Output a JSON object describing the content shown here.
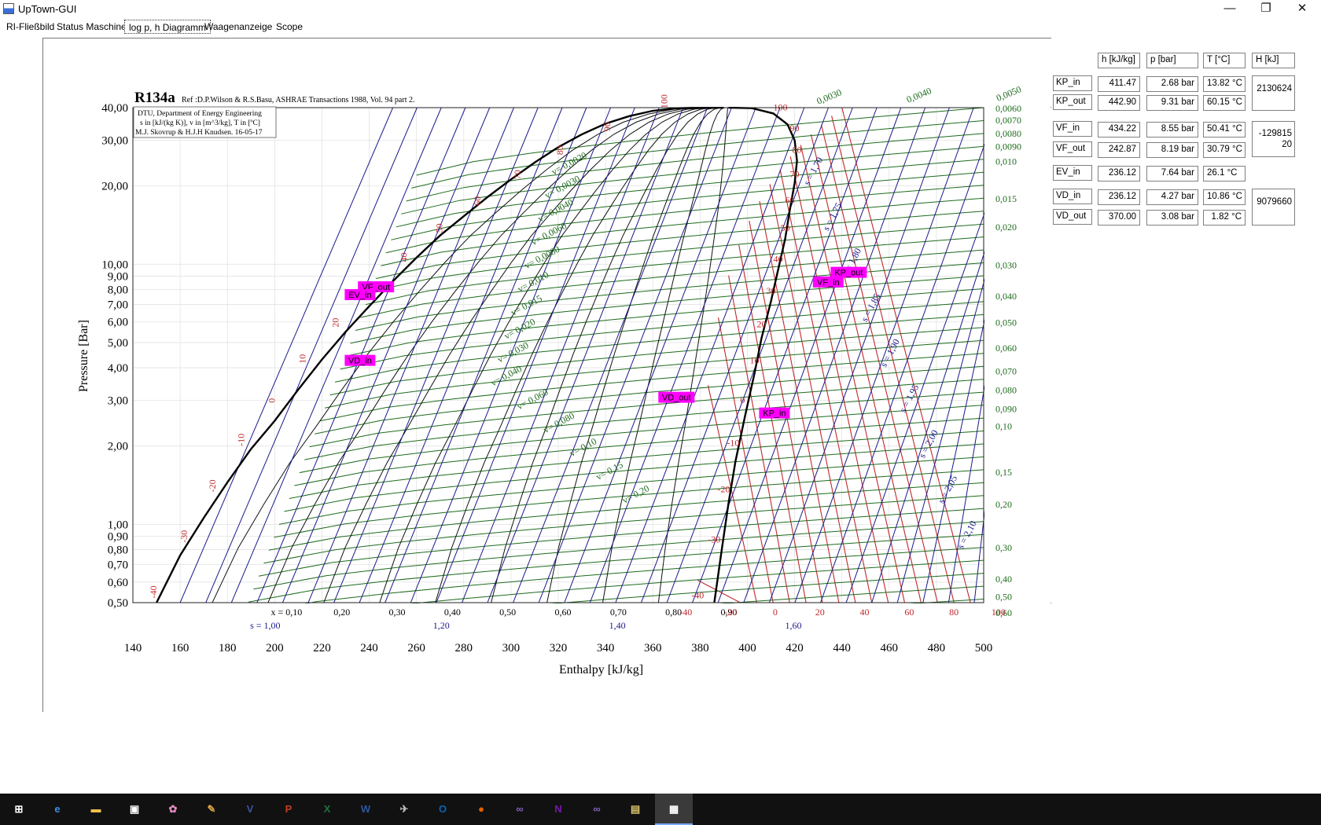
{
  "window": {
    "title": "UpTown-GUI",
    "minimize": "—",
    "restore": "❐",
    "close": "✕"
  },
  "tabs": [
    {
      "label": "RI-Fließbild"
    },
    {
      "label": "Status Maschine"
    },
    {
      "label": "log p, h Diagramm"
    },
    {
      "label": "Waagenanzeige"
    },
    {
      "label": "Scope"
    }
  ],
  "chart_data": {
    "type": "line",
    "title": "R134a",
    "subtitle": "Ref :D.P.Wilson & R.S.Basu, ASHRAE Transactions 1988, Vol. 94 part 2.",
    "infobox": [
      "DTU, Department of Energy Engineering",
      "s in [kJ/(kg K)], v in [m^3/kg], T in [ºC]",
      "M.J. Skovrup & H.J.H Knudsen. 16-05-17"
    ],
    "xlabel": "Enthalpy [kJ/kg]",
    "ylabel": "Pressure [Bar]",
    "xlim": [
      140,
      500
    ],
    "ylim": [
      0.5,
      40
    ],
    "yscale": "log",
    "x_ticks": [
      "140",
      "160",
      "180",
      "200",
      "220",
      "240",
      "260",
      "280",
      "300",
      "320",
      "340",
      "360",
      "380",
      "400",
      "420",
      "440",
      "460",
      "480",
      "500"
    ],
    "y_ticks": [
      {
        "v": 0.5,
        "label": "0,50"
      },
      {
        "v": 0.6,
        "label": "0,60"
      },
      {
        "v": 0.7,
        "label": "0,70"
      },
      {
        "v": 0.8,
        "label": "0,80"
      },
      {
        "v": 0.9,
        "label": "0,90"
      },
      {
        "v": 1.0,
        "label": "1,00"
      },
      {
        "v": 2.0,
        "label": "2,00"
      },
      {
        "v": 3.0,
        "label": "3,00"
      },
      {
        "v": 4.0,
        "label": "4,00"
      },
      {
        "v": 5.0,
        "label": "5,00"
      },
      {
        "v": 6.0,
        "label": "6,00"
      },
      {
        "v": 7.0,
        "label": "7,00"
      },
      {
        "v": 8.0,
        "label": "8,00"
      },
      {
        "v": 9.0,
        "label": "9,00"
      },
      {
        "v": 10.0,
        "label": "10,00"
      },
      {
        "v": 20.0,
        "label": "20,00"
      },
      {
        "v": 30.0,
        "label": "30,00"
      },
      {
        "v": 40.0,
        "label": "40,00"
      }
    ],
    "quality_labels": [
      "x = 0,10",
      "0,20",
      "0,30",
      "0,40",
      "0,50",
      "0,60",
      "0,70",
      "0,80",
      "0,90"
    ],
    "entropy_bottom_labels": [
      "s = 1,00",
      "1,20",
      "1,40",
      "1,60"
    ],
    "red_bottom_labels": [
      "-40",
      "-20",
      "0",
      "20",
      "40",
      "60",
      "80",
      "100"
    ],
    "volume_right_labels": [
      "0,0060",
      "0,0070",
      "0,0080",
      "0,0090",
      "0,010",
      "0,015",
      "0,020",
      "0,030",
      "0,040",
      "0,050",
      "0,060",
      "0,070",
      "0,080",
      "0,090",
      "0,10",
      "0,15",
      "0,20",
      "0,30",
      "0,40",
      "0,50",
      "0,60"
    ],
    "volume_right_values": [
      40,
      36,
      32,
      28.5,
      25,
      18,
      14,
      10,
      7.6,
      6,
      4.8,
      3.9,
      3.3,
      2.8,
      2.4,
      1.6,
      1.2,
      0.82,
      0.62,
      0.53,
      0.46
    ],
    "volume_top_labels": [
      "0,0030",
      "0,0040",
      "0,0050"
    ],
    "volume_inline_labels": [
      "v= 0,0020",
      "v= 0,0030",
      "v= 0,0040",
      "v= 0,0060",
      "v= 0,0080",
      "v= 0,010",
      "v= 0,015",
      "v= 0,020",
      "v= 0,030",
      "v= 0,040",
      "v= 0,060",
      "v= 0,080",
      "v= 0,10",
      "v= 0,15",
      "v= 0,20"
    ],
    "entropy_inline_labels": [
      "s = 1,70",
      "s = 1,75",
      "s = 1,80",
      "s = 1,85",
      "s = 1,90",
      "s = 1,95",
      "s = 2,00",
      "s = 2,05",
      "s = 2,10"
    ],
    "liquid_temp_labels": [
      {
        "t": "-40",
        "h": 150,
        "p": 0.52
      },
      {
        "t": "-30",
        "h": 163,
        "p": 0.85
      },
      {
        "t": "-20",
        "h": 175,
        "p": 1.33
      },
      {
        "t": "-10",
        "h": 187,
        "p": 2.0
      },
      {
        "t": "0",
        "h": 200,
        "p": 2.93
      },
      {
        "t": "10",
        "h": 213,
        "p": 4.15
      },
      {
        "t": "20",
        "h": 227,
        "p": 5.72
      },
      {
        "t": "30",
        "h": 241,
        "p": 7.7
      },
      {
        "t": "40",
        "h": 256,
        "p": 10.2
      },
      {
        "t": "50",
        "h": 271,
        "p": 13.2
      },
      {
        "t": "60",
        "h": 287,
        "p": 16.8
      },
      {
        "t": "70",
        "h": 304,
        "p": 21.2
      },
      {
        "t": "80",
        "h": 322,
        "p": 26.3
      },
      {
        "t": "90",
        "h": 342,
        "p": 32.4
      },
      {
        "t": "100",
        "h": 366,
        "p": 39.7
      }
    ],
    "vapor_temp_labels": [
      {
        "t": "100",
        "h": 414,
        "p": 39.0
      },
      {
        "t": "90",
        "h": 420,
        "p": 32.5
      },
      {
        "t": "80",
        "h": 421,
        "p": 26.8
      },
      {
        "t": "70",
        "h": 420,
        "p": 21.6
      },
      {
        "t": "60",
        "h": 418,
        "p": 17.2
      },
      {
        "t": "50",
        "h": 416,
        "p": 13.4
      },
      {
        "t": "40",
        "h": 413,
        "p": 10.2
      },
      {
        "t": "30",
        "h": 410,
        "p": 7.7
      },
      {
        "t": "20",
        "h": 406,
        "p": 5.72
      },
      {
        "t": "10",
        "h": 403,
        "p": 4.15
      },
      {
        "t": "0",
        "h": 398,
        "p": 2.93
      },
      {
        "t": "-10",
        "h": 394,
        "p": 2.0
      },
      {
        "t": "-20",
        "h": 390,
        "p": 1.33
      },
      {
        "t": "-30",
        "h": 386,
        "p": 0.85
      },
      {
        "t": "-40",
        "h": 379,
        "p": 0.52
      }
    ],
    "state_points": [
      {
        "name": "KP_in",
        "h": 411.47,
        "p": 2.68
      },
      {
        "name": "KP_out",
        "h": 442.9,
        "p": 9.31
      },
      {
        "name": "VF_in",
        "h": 434.22,
        "p": 8.55
      },
      {
        "name": "VF_out",
        "h": 242.87,
        "p": 8.19
      },
      {
        "name": "EV_in",
        "h": 236.12,
        "p": 7.64
      },
      {
        "name": "VD_in",
        "h": 236.12,
        "p": 4.27
      },
      {
        "name": "VD_out",
        "h": 370.0,
        "p": 3.08
      }
    ]
  },
  "panel": {
    "headers": [
      "h [kJ/kg]",
      "p [bar]",
      "T [°C]",
      "H [kJ]"
    ],
    "rows": [
      {
        "label": "KP_in",
        "h": "411.47",
        "p": "2.68 bar",
        "T": "13.82 °C"
      },
      {
        "label": "KP_out",
        "h": "442.90",
        "p": "9.31 bar",
        "T": "60.15 °C"
      },
      {
        "label": "VF_in",
        "h": "434.22",
        "p": "8.55 bar",
        "T": "50.41 °C"
      },
      {
        "label": "VF_out",
        "h": "242.87",
        "p": "8.19 bar",
        "T": "30.79 °C"
      },
      {
        "label": "EV_in",
        "h": "236.12",
        "p": "7.64 bar",
        "T": "26.1 °C"
      },
      {
        "label": "VD_in",
        "h": "236.12",
        "p": "4.27 bar",
        "T": "10.86 °C"
      },
      {
        "label": "VD_out",
        "h": "370.00",
        "p": "3.08 bar",
        "T": "1.82 °C"
      }
    ],
    "H": [
      "2130624",
      "-129815 20",
      "9079660"
    ]
  },
  "taskbar": {
    "items": [
      {
        "name": "start",
        "glyph": "⊞",
        "color": "#ffffff"
      },
      {
        "name": "edge",
        "glyph": "e",
        "color": "#3b8fe0"
      },
      {
        "name": "explorer",
        "glyph": "▬",
        "color": "#f2c14b"
      },
      {
        "name": "store",
        "glyph": "▣",
        "color": "#ffffff"
      },
      {
        "name": "paint3d",
        "glyph": "✿",
        "color": "#e08ac0"
      },
      {
        "name": "paint",
        "glyph": "✎",
        "color": "#d9a441"
      },
      {
        "name": "visio",
        "glyph": "V",
        "color": "#3955a3"
      },
      {
        "name": "powerpoint",
        "glyph": "P",
        "color": "#c43e1c"
      },
      {
        "name": "excel",
        "glyph": "X",
        "color": "#1d7044"
      },
      {
        "name": "word",
        "glyph": "W",
        "color": "#2b579a"
      },
      {
        "name": "tool",
        "glyph": "✈",
        "color": "#bbbbbb"
      },
      {
        "name": "outlook",
        "glyph": "O",
        "color": "#0a64b4"
      },
      {
        "name": "firefox",
        "glyph": "●",
        "color": "#e66000"
      },
      {
        "name": "visualstudio",
        "glyph": "∞",
        "color": "#865fc5"
      },
      {
        "name": "onenote",
        "glyph": "N",
        "color": "#7719aa"
      },
      {
        "name": "visualstudio2",
        "glyph": "∞",
        "color": "#865fc5"
      },
      {
        "name": "archive",
        "glyph": "▤",
        "color": "#d9c26a"
      },
      {
        "name": "uptown",
        "glyph": "▦",
        "color": "#ffffff"
      }
    ]
  },
  "colors": {
    "red": "#c0282d",
    "green": "#1d6b1d",
    "blue": "#1a1a8c",
    "black": "#000000",
    "magenta": "#ff00ff"
  }
}
